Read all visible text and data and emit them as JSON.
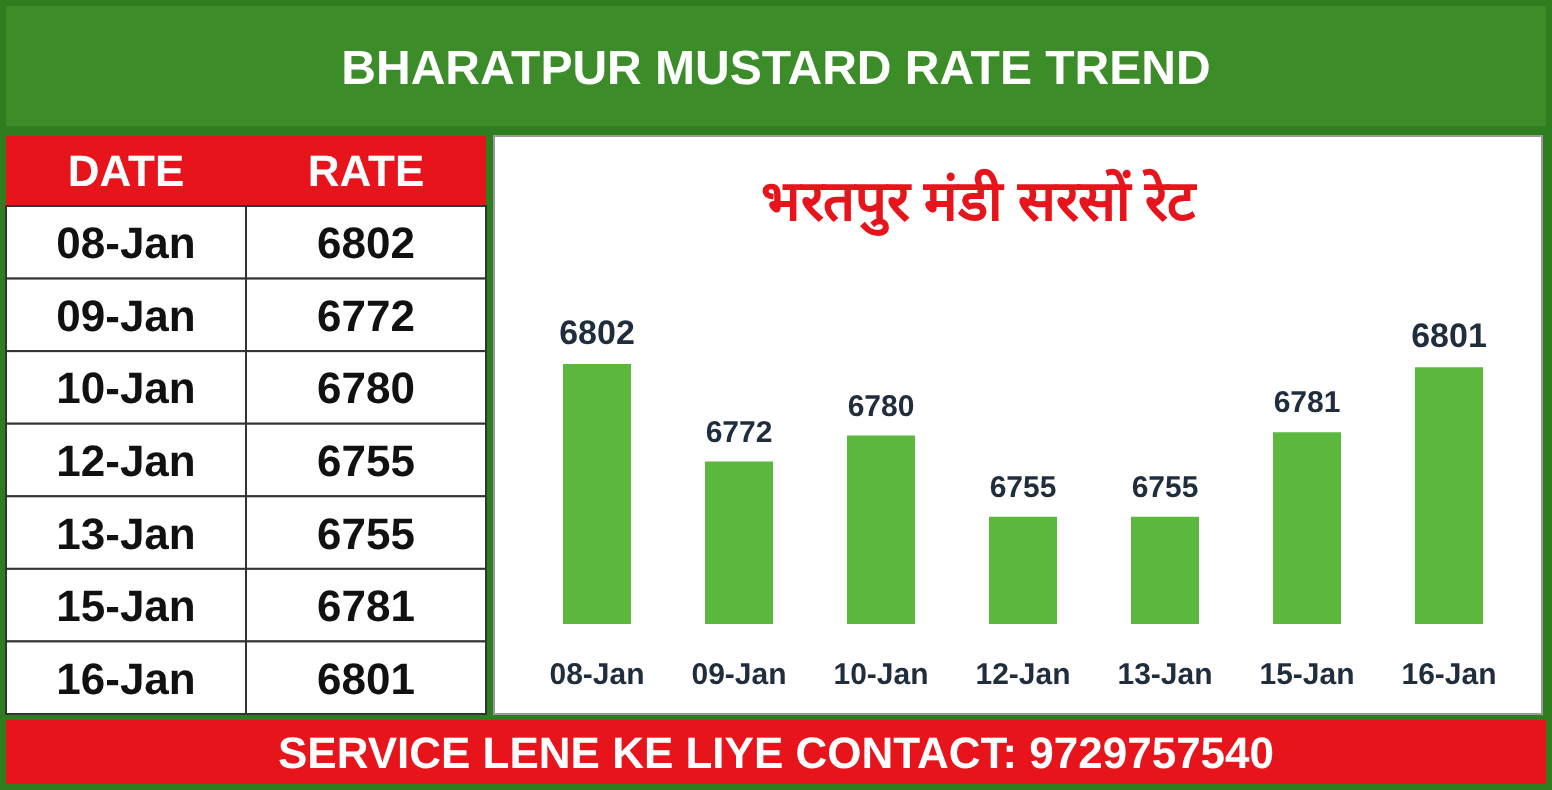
{
  "chart_data": [
    {
      "type": "other",
      "title": "BHARATPUR MUSTARD RATE TREND",
      "categories": [
        "08-Jan",
        "09-Jan",
        "10-Jan",
        "12-Jan",
        "13-Jan",
        "15-Jan",
        "16-Jan"
      ],
      "values": [
        6802,
        6772,
        6780,
        6755,
        6755,
        6781,
        6801
      ],
      "data_labels": true,
      "annotations": [
        "DATE",
        "RATE",
        "SERVICE LENE KE LIYE CONTACT: 9729757540"
      ]
    },
    {
      "type": "bar",
      "title": "भरतपुर मंडी सरसों रेट",
      "categories": [
        "08-Jan",
        "09-Jan",
        "10-Jan",
        "12-Jan",
        "13-Jan",
        "15-Jan",
        "16-Jan"
      ],
      "values": [
        6802,
        6772,
        6780,
        6755,
        6755,
        6781,
        6801
      ],
      "color": "#5cb83c",
      "ylim": [
        6722,
        6802
      ],
      "data_labels": true
    }
  ]
}
